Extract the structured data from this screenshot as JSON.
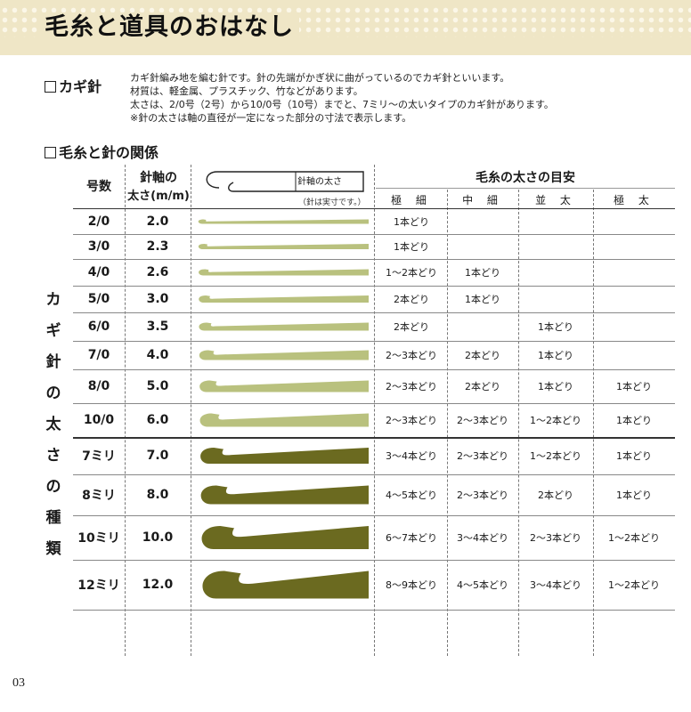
{
  "page": {
    "title": "毛糸と道具のおはなし",
    "page_number": "03"
  },
  "crochet_hook": {
    "title": "カギ針",
    "lines": [
      "カギ針編み地を編む針です。針の先端がかぎ状に曲がっているのでカギ針といいます。",
      "材質は、軽金属、プラスチック、竹などがあります。",
      "太さは、2/0号（2号）から10/0号（10号）までと、7ミリ～の太いタイプのカギ針があります。",
      "※針の太さは軸の直径が一定になった部分の寸法で表示します。"
    ]
  },
  "relation": {
    "title": "毛糸と針の関係",
    "side_label": [
      "カ",
      "ギ",
      "針",
      "の",
      "太",
      "さ",
      "の",
      "種",
      "類"
    ],
    "headers": {
      "size": "号数",
      "shaft_line1": "針軸の",
      "shaft_line2": "太さ(m/m)",
      "shaft_label": "針軸の太さ",
      "actual_size_note": "（針は実寸です。）",
      "yarn_group": "毛糸の太さの目安",
      "yarn_cols": [
        "極 細",
        "中 細",
        "並 太",
        "極 太"
      ]
    },
    "rows": [
      {
        "size": "2/0",
        "mm": "2.0",
        "cells": [
          "1本どり",
          "",
          "",
          ""
        ],
        "color": "#b9c17e",
        "thickness": 5
      },
      {
        "size": "3/0",
        "mm": "2.3",
        "cells": [
          "1本どり",
          "",
          "",
          ""
        ],
        "color": "#b9c17e",
        "thickness": 6
      },
      {
        "size": "4/0",
        "mm": "2.6",
        "cells": [
          "1～2本どり",
          "1本どり",
          "",
          ""
        ],
        "color": "#b9c17e",
        "thickness": 7
      },
      {
        "size": "5/0",
        "mm": "3.0",
        "cells": [
          "2本どり",
          "1本どり",
          "",
          ""
        ],
        "color": "#b9c17e",
        "thickness": 8
      },
      {
        "size": "6/0",
        "mm": "3.5",
        "cells": [
          "2本どり",
          "",
          "1本どり",
          ""
        ],
        "color": "#b9c17e",
        "thickness": 9
      },
      {
        "size": "7/0",
        "mm": "4.0",
        "cells": [
          "2～3本どり",
          "2本どり",
          "1本どり",
          ""
        ],
        "color": "#b9c17e",
        "thickness": 11
      },
      {
        "size": "8/0",
        "mm": "5.0",
        "cells": [
          "2～3本どり",
          "2本どり",
          "1本どり",
          "1本どり"
        ],
        "color": "#b9c17e",
        "thickness": 13
      },
      {
        "size": "10/0",
        "mm": "6.0",
        "cells": [
          "2～3本どり",
          "2～3本どり",
          "1～2本どり",
          "1本どり"
        ],
        "color": "#b9c17e",
        "thickness": 15
      },
      {
        "size": "7ミリ",
        "mm": "7.0",
        "cells": [
          "3～4本どり",
          "2～3本どり",
          "1～2本どり",
          "1本どり"
        ],
        "color": "#6b6a20",
        "thickness": 18
      },
      {
        "size": "8ミリ",
        "mm": "8.0",
        "cells": [
          "4～5本どり",
          "2～3本どり",
          "2本どり",
          "1本どり"
        ],
        "color": "#6b6a20",
        "thickness": 21
      },
      {
        "size": "10ミリ",
        "mm": "10.0",
        "cells": [
          "6～7本どり",
          "3～4本どり",
          "2～3本どり",
          "1～2本どり"
        ],
        "color": "#6b6a20",
        "thickness": 26
      },
      {
        "size": "12ミリ",
        "mm": "12.0",
        "cells": [
          "8～9本どり",
          "4～5本どり",
          "3～4本どり",
          "1～2本どり"
        ],
        "color": "#6b6a20",
        "thickness": 31
      }
    ]
  }
}
